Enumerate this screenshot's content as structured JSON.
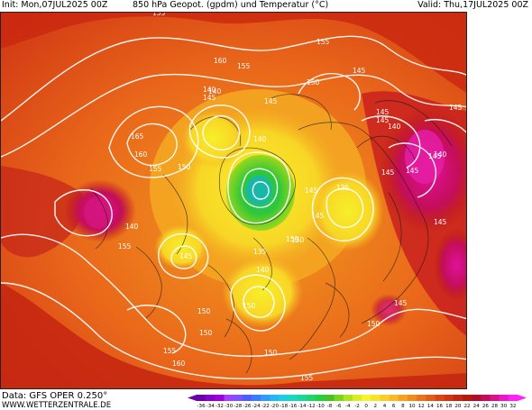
{
  "header": {
    "init": "Init: Mon,07JUL2025 00Z",
    "title": "850 hPa Geopot. (gpdm) und Temperatur (°C)",
    "valid": "Valid: Thu,17JUL2025 00Z"
  },
  "footer": {
    "source": "Data: GFS OPER 0.250°",
    "site": "WWW.WETTERZENTRALE.DE"
  },
  "legend": {
    "labels": [
      "-36",
      "-34",
      "-32",
      "-30",
      "-28",
      "-26",
      "-24",
      "-22",
      "-20",
      "-18",
      "-16",
      "-14",
      "-12",
      "-10",
      "-8",
      "-6",
      "-4",
      "-2",
      "0",
      "2",
      "4",
      "6",
      "8",
      "10",
      "12",
      "14",
      "16",
      "18",
      "20",
      "22",
      "24",
      "26",
      "28",
      "30",
      "32"
    ],
    "colors": [
      "#6a00a8",
      "#8800cc",
      "#9b00e0",
      "#a63cff",
      "#7a55ff",
      "#4f5cff",
      "#3b7bff",
      "#2e9bff",
      "#22b7f5",
      "#1ccfe0",
      "#19d8c0",
      "#19d89a",
      "#1fd56b",
      "#28cf3c",
      "#45c322",
      "#7ad619",
      "#b2e21b",
      "#dcee1f",
      "#f5f52a",
      "#f8e32a",
      "#f9cf27",
      "#f8b923",
      "#f5a21f",
      "#f08a1c",
      "#ea7219",
      "#e45b16",
      "#dc4513",
      "#d23311",
      "#c5240f",
      "#b8170d",
      "#b00f2a",
      "#c40e5a",
      "#d9118f",
      "#ee17c5",
      "#ff22f2"
    ]
  },
  "map": {
    "contour_labels": [
      "155",
      "155",
      "160",
      "155",
      "145",
      "140",
      "145",
      "145",
      "165",
      "160",
      "155",
      "150",
      "140",
      "150",
      "135",
      "145",
      "145",
      "140",
      "145",
      "150",
      "155",
      "145",
      "150",
      "145",
      "140",
      "150",
      "140",
      "145",
      "140",
      "135",
      "145",
      "145",
      "150",
      "150",
      "145",
      "155",
      "160",
      "155",
      "150",
      "150",
      "145",
      "140",
      "145"
    ]
  }
}
